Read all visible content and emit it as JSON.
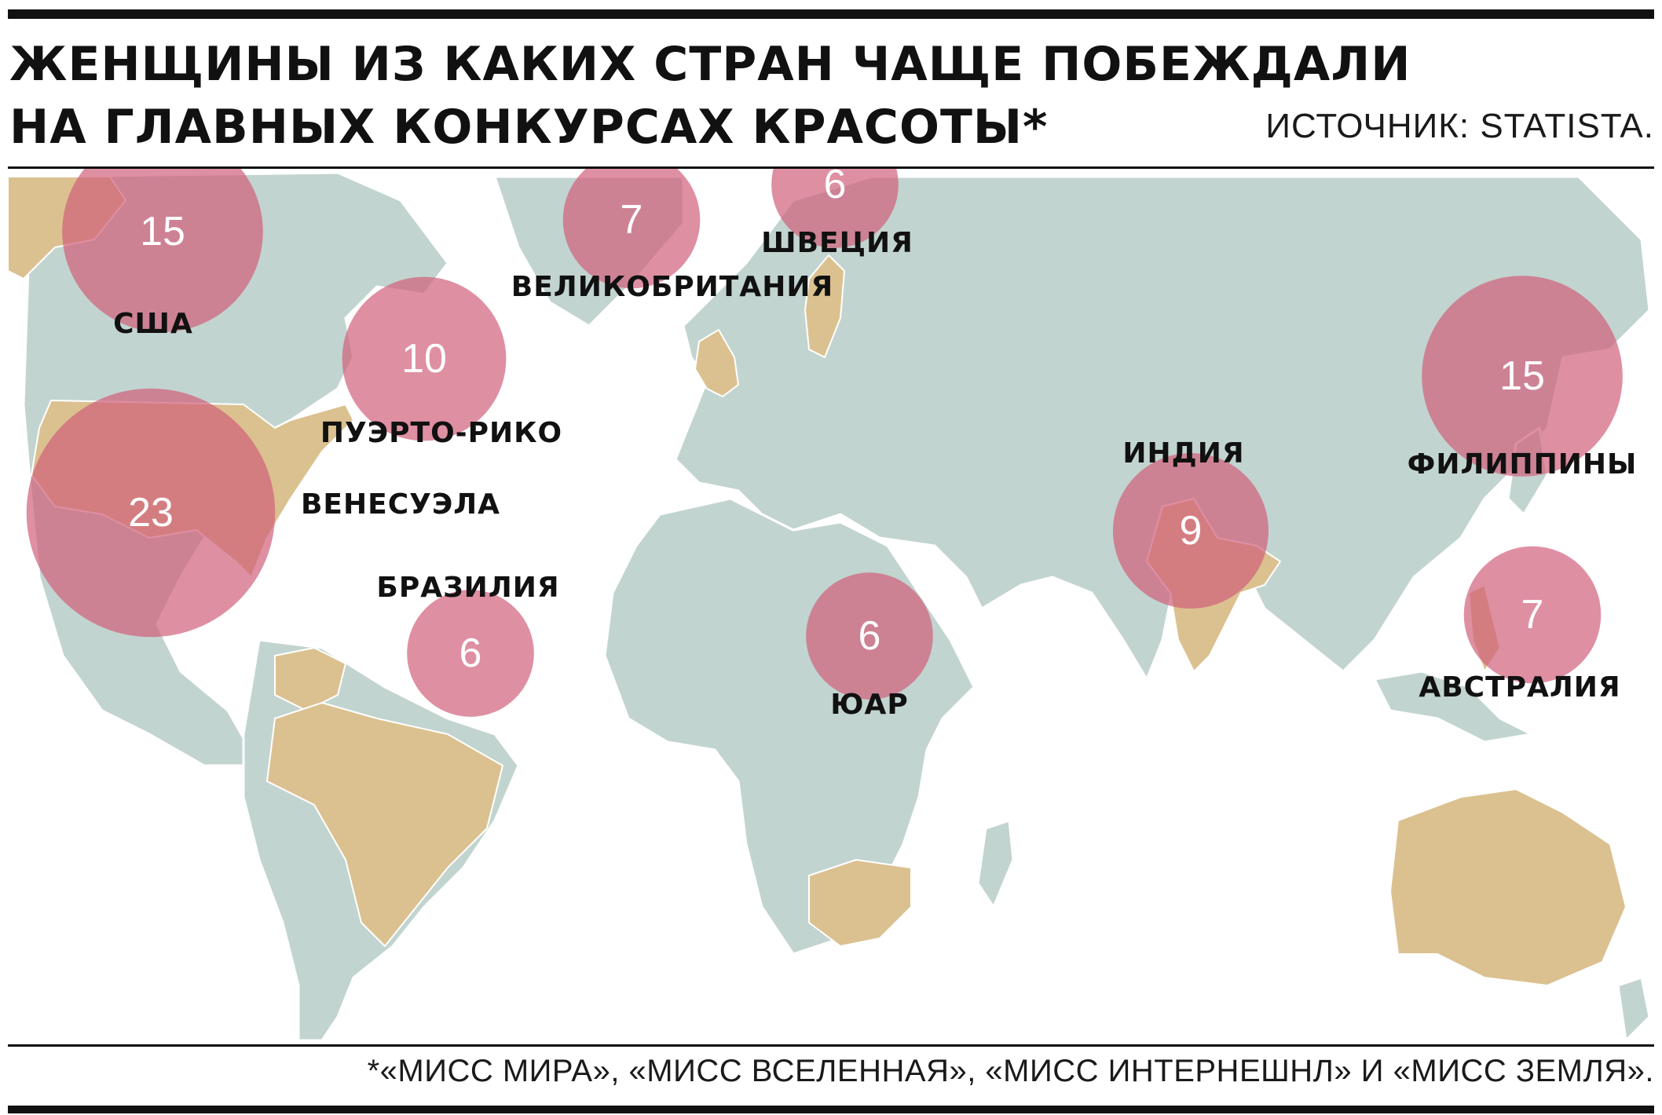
{
  "header": {
    "title": "ЖЕНЩИНЫ ИЗ КАКИХ СТРАН ЧАЩЕ ПОБЕЖДАЛИ НА ГЛАВНЫХ КОНКУРСАХ КРАСОТЫ*",
    "source": "ИСТОЧНИК: STATISTA."
  },
  "footnote": "*«МИСС МИРА», «МИСС ВСЕЛЕННАЯ», «МИСС ИНТЕРНЕШНЛ» И «МИСС ЗЕМЛЯ».",
  "colors": {
    "ocean": "#ffffff",
    "land": "#c2d4d0",
    "highlight_land": "#dbc190",
    "bubble": "#d1607a",
    "border": "#ffffff"
  },
  "chart_data": {
    "type": "bubble-map",
    "countries": [
      {
        "name": "США",
        "value": 15
      },
      {
        "name": "ВЕЛИКОБРИТАНИЯ",
        "value": 7
      },
      {
        "name": "ШВЕЦИЯ",
        "value": 6
      },
      {
        "name": "ПУЭРТО-РИКО",
        "value": 10
      },
      {
        "name": "ВЕНЕСУЭЛА",
        "value": 23
      },
      {
        "name": "БРАЗИЛИЯ",
        "value": 6
      },
      {
        "name": "ЮАР",
        "value": 6
      },
      {
        "name": "ИНДИЯ",
        "value": 9
      },
      {
        "name": "ФИЛИППИНЫ",
        "value": 15
      },
      {
        "name": "АВСТРАЛИЯ",
        "value": 7
      }
    ]
  }
}
